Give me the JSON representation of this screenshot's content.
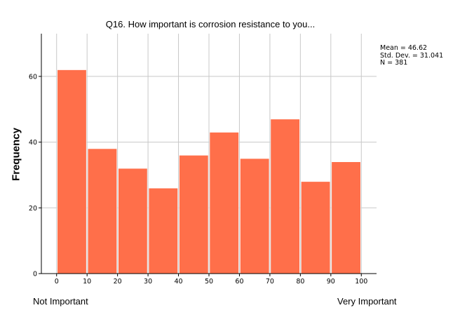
{
  "chart_data": {
    "type": "bar",
    "title": "Q16. How important is corrosion resistance to you...",
    "xlabel": "",
    "ylabel": "Frequency",
    "x_ticks": [
      0,
      10,
      20,
      30,
      40,
      50,
      60,
      70,
      80,
      90,
      100
    ],
    "y_ticks": [
      0,
      20,
      40,
      60
    ],
    "bin_edges": [
      0,
      10,
      20,
      30,
      40,
      50,
      60,
      70,
      80,
      90,
      100
    ],
    "values": [
      62,
      38,
      32,
      26,
      36,
      43,
      35,
      47,
      28,
      34
    ],
    "xlim": [
      -5,
      105
    ],
    "ylim": [
      0,
      73
    ],
    "grid": true,
    "bar_color": "#ff6f4a",
    "stats": {
      "mean": "Mean = 46.62",
      "std_dev": "Std. Dev. = 31.041",
      "n": "N = 381"
    },
    "anchor_labels": {
      "low": "Not Important",
      "high": "Very Important"
    }
  }
}
